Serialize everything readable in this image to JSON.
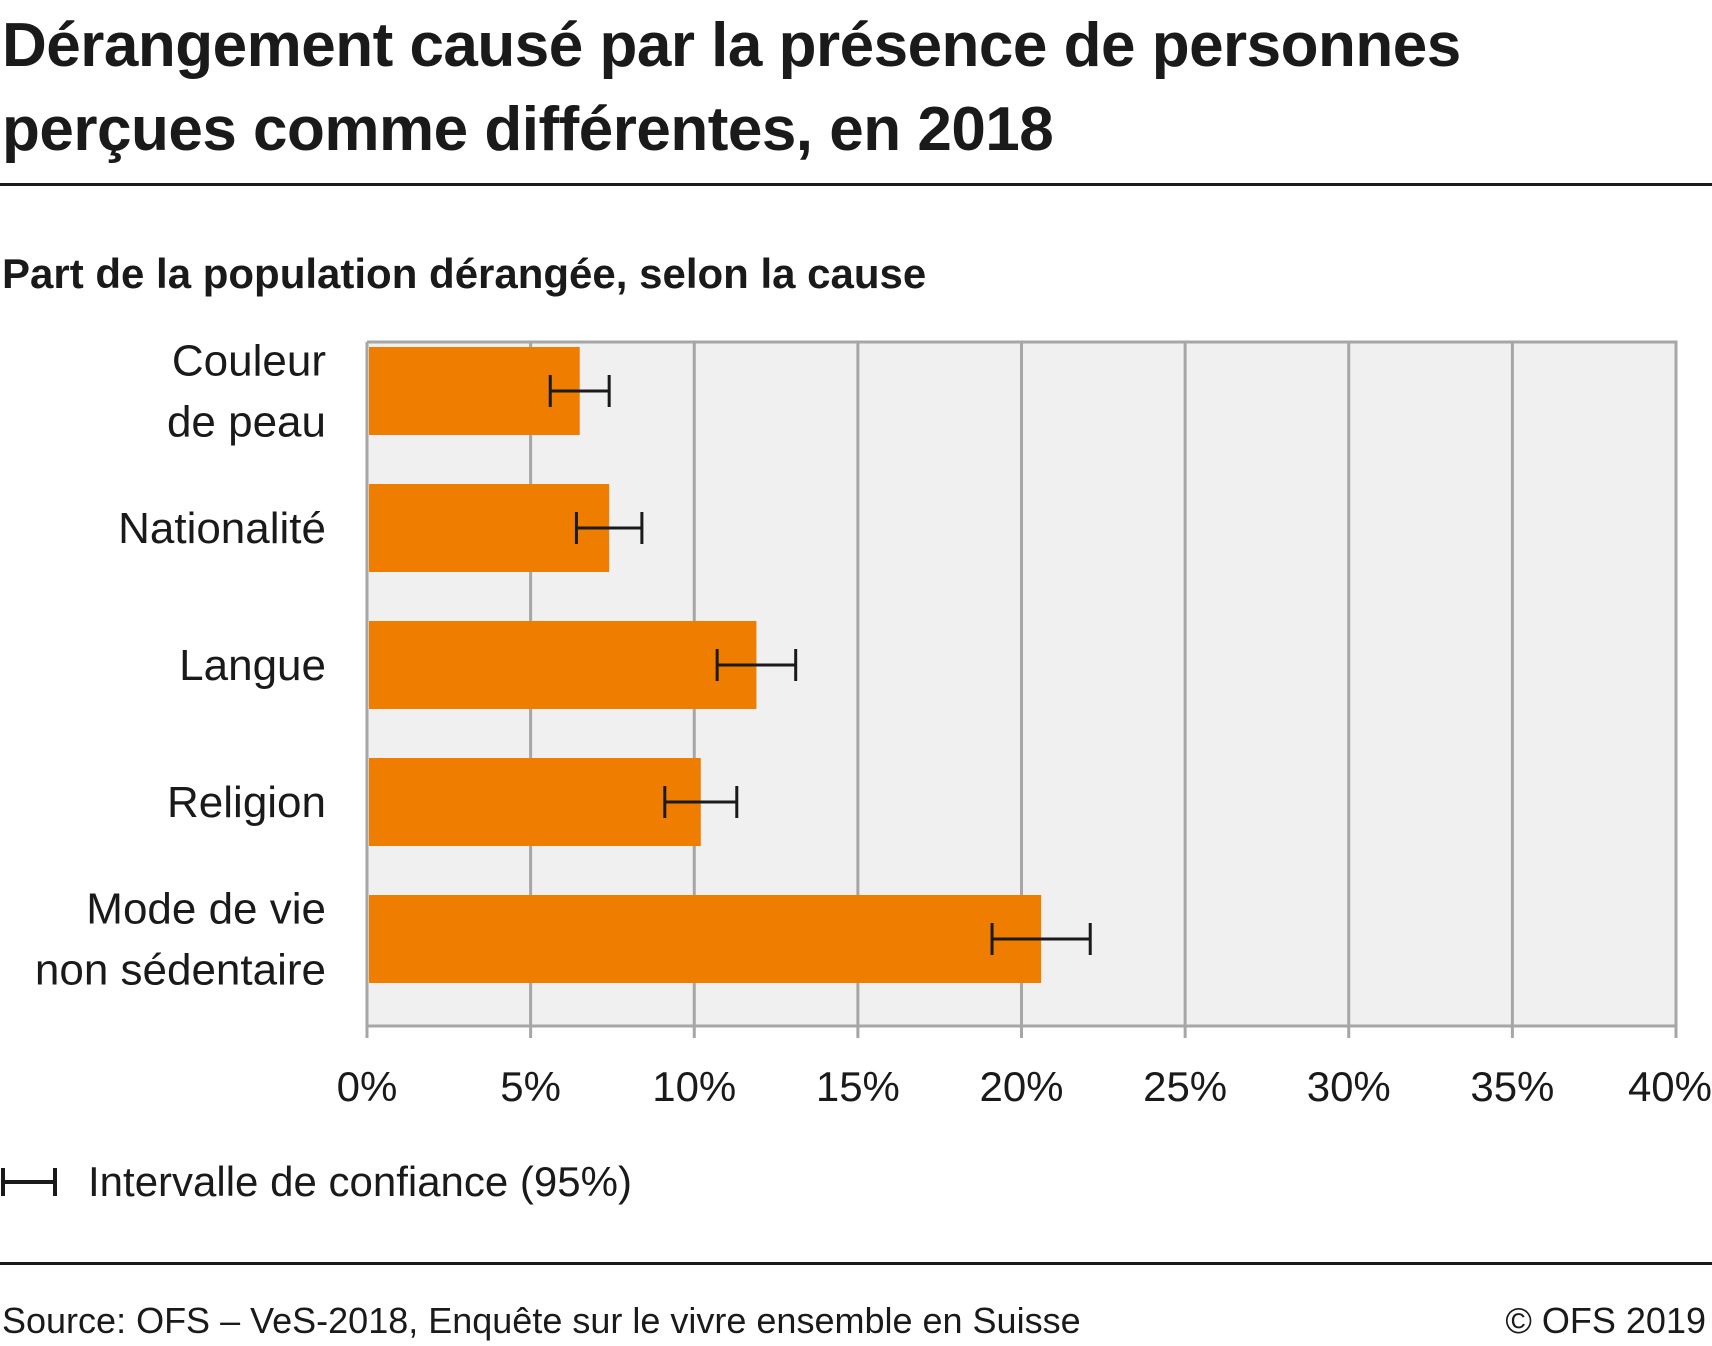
{
  "title_lines": [
    "Dérangement causé par la présence de personnes",
    "perçues comme différentes, en 2018"
  ],
  "subtitle": "Part de la population dérangée, selon la cause",
  "legend": {
    "label": "Intervalle de confiance (95%)",
    "icon": "error-bar-icon"
  },
  "footer": {
    "source": "Source: OFS – VeS-2018, Enquête sur le vivre ensemble en Suisse",
    "copyright": "© OFS 2019"
  },
  "colors": {
    "bar": "#EF7D00",
    "plot_background": "#F0F0F0",
    "grid": "#A6A6A6",
    "error_bar": "#1a1a1a",
    "text": "#1a1a1a"
  },
  "chart_data": {
    "type": "bar",
    "orientation": "horizontal",
    "title": "Dérangement causé par la présence de personnes perçues comme différentes, en 2018",
    "subtitle": "Part de la population dérangée, selon la cause",
    "categories": [
      [
        "Couleur",
        "de peau"
      ],
      [
        "Nationalité"
      ],
      [
        "Langue"
      ],
      [
        "Religion"
      ],
      [
        "Mode de vie",
        "non sédentaire"
      ]
    ],
    "values": [
      6.5,
      7.4,
      11.9,
      10.2,
      20.6
    ],
    "ci_low": [
      5.6,
      6.4,
      10.7,
      9.1,
      19.1
    ],
    "ci_high": [
      7.4,
      8.4,
      13.1,
      11.3,
      22.1
    ],
    "unit": "%",
    "xlim": [
      0,
      40
    ],
    "xticks": [
      0,
      5,
      10,
      15,
      20,
      25,
      30,
      35,
      40
    ],
    "xtick_labels": [
      "0%",
      "5%",
      "10%",
      "15%",
      "20%",
      "25%",
      "30%",
      "35%",
      "40%"
    ],
    "grid": true,
    "legend_position": "bottom-left"
  }
}
